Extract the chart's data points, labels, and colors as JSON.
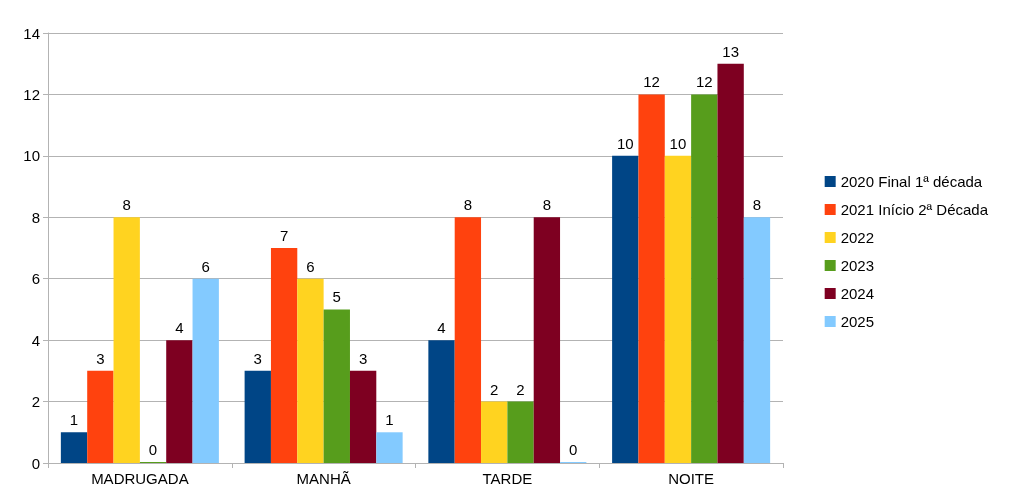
{
  "chart_data": {
    "type": "bar",
    "categories": [
      "MADRUGADA",
      "MANHÃ",
      "TARDE",
      "NOITE"
    ],
    "series": [
      {
        "name": "2020 Final 1ª década",
        "color": "#004586",
        "values": [
          1,
          3,
          4,
          10
        ]
      },
      {
        "name": "2021 Início 2ª Década",
        "color": "#ff420e",
        "values": [
          3,
          7,
          8,
          12
        ]
      },
      {
        "name": "2022",
        "color": "#ffd320",
        "values": [
          8,
          6,
          2,
          10
        ]
      },
      {
        "name": "2023",
        "color": "#579d1c",
        "values": [
          0,
          5,
          2,
          12
        ]
      },
      {
        "name": "2024",
        "color": "#7e0021",
        "values": [
          4,
          3,
          8,
          13
        ]
      },
      {
        "name": "2025",
        "color": "#83caff",
        "values": [
          6,
          1,
          0,
          8
        ]
      }
    ],
    "ylim": [
      0,
      14
    ],
    "yticks": [
      0,
      2,
      4,
      6,
      8,
      10,
      12,
      14
    ],
    "grid": "y",
    "legend": "right",
    "data_labels": true
  }
}
